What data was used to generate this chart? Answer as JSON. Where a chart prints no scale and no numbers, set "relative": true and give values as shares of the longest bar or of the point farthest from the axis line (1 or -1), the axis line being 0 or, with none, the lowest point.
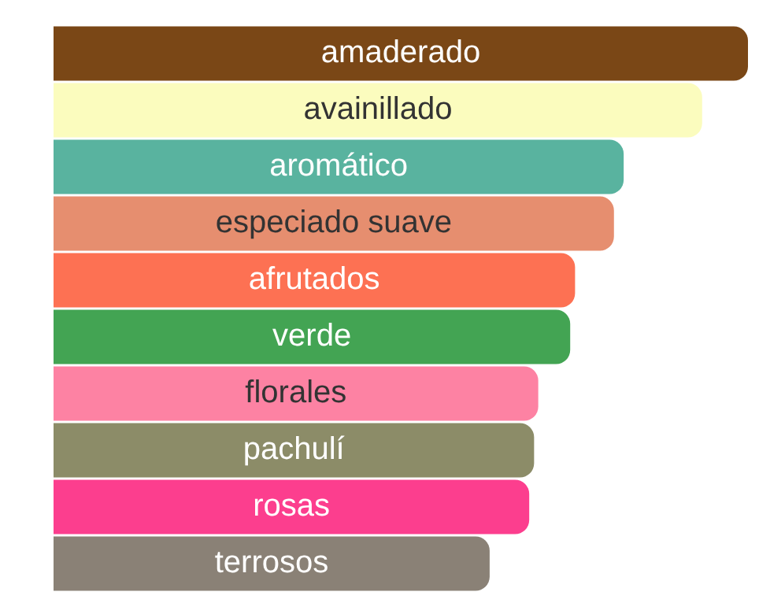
{
  "chart_data": {
    "type": "bar",
    "orientation": "horizontal",
    "relative": true,
    "categories": [
      "amaderado",
      "avainillado",
      "aromático",
      "especiado suave",
      "afrutados",
      "verde",
      "florales",
      "pachulí",
      "rosas",
      "terrosos"
    ],
    "values": [
      1,
      0.934,
      0.821,
      0.807,
      0.751,
      0.744,
      0.698,
      0.692,
      0.685,
      0.628
    ],
    "colors": [
      "#7a4716",
      "#fbfcbe",
      "#59b39f",
      "#e68e6f",
      "#fd7153",
      "#43a453",
      "#fd82a3",
      "#8c8c68",
      "#fc3e8e",
      "#8a8176"
    ],
    "legend": false
  }
}
